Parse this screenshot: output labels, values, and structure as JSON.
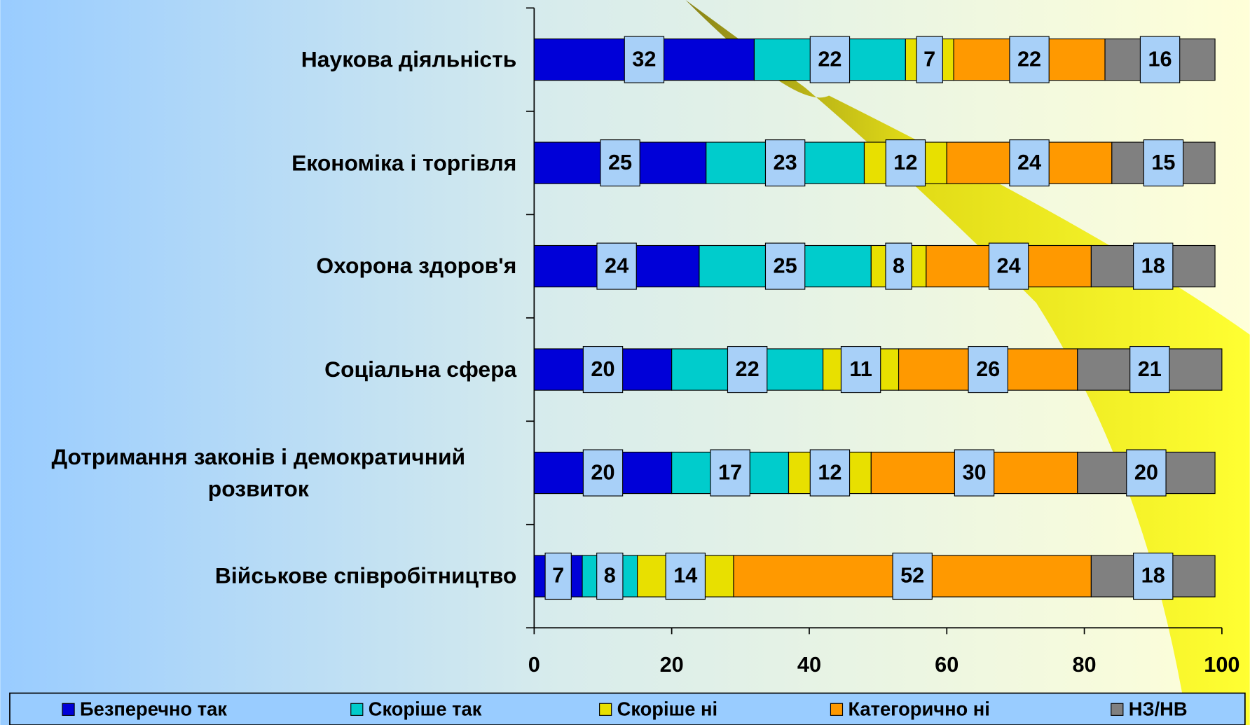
{
  "chart_data": {
    "type": "stacked-barh",
    "categories": [
      "Наукова діяльність",
      "Економіка і торгівля",
      "Охорона здоров'я",
      "Соціальна сфера",
      "Дотримання законів і демократичний розвиток",
      "Військове співробітництво"
    ],
    "series": [
      {
        "name": "Безперечно так",
        "color": "#0000d8",
        "values": [
          32,
          25,
          24,
          20,
          20,
          7
        ]
      },
      {
        "name": "Скоріше так",
        "color": "#00cccc",
        "values": [
          22,
          23,
          25,
          22,
          17,
          8
        ]
      },
      {
        "name": "Скоріше ні",
        "color": "#e8e000",
        "values": [
          7,
          12,
          8,
          11,
          12,
          14
        ]
      },
      {
        "name": "Категорично ні",
        "color": "#ff9900",
        "values": [
          22,
          24,
          24,
          26,
          30,
          52
        ]
      },
      {
        "name": "НЗ/НВ",
        "color": "#808080",
        "values": [
          16,
          15,
          18,
          21,
          20,
          18
        ]
      }
    ],
    "xlim": [
      0,
      100
    ],
    "xticks": [
      0,
      20,
      40,
      60,
      80,
      100
    ],
    "legend": "bottom"
  }
}
